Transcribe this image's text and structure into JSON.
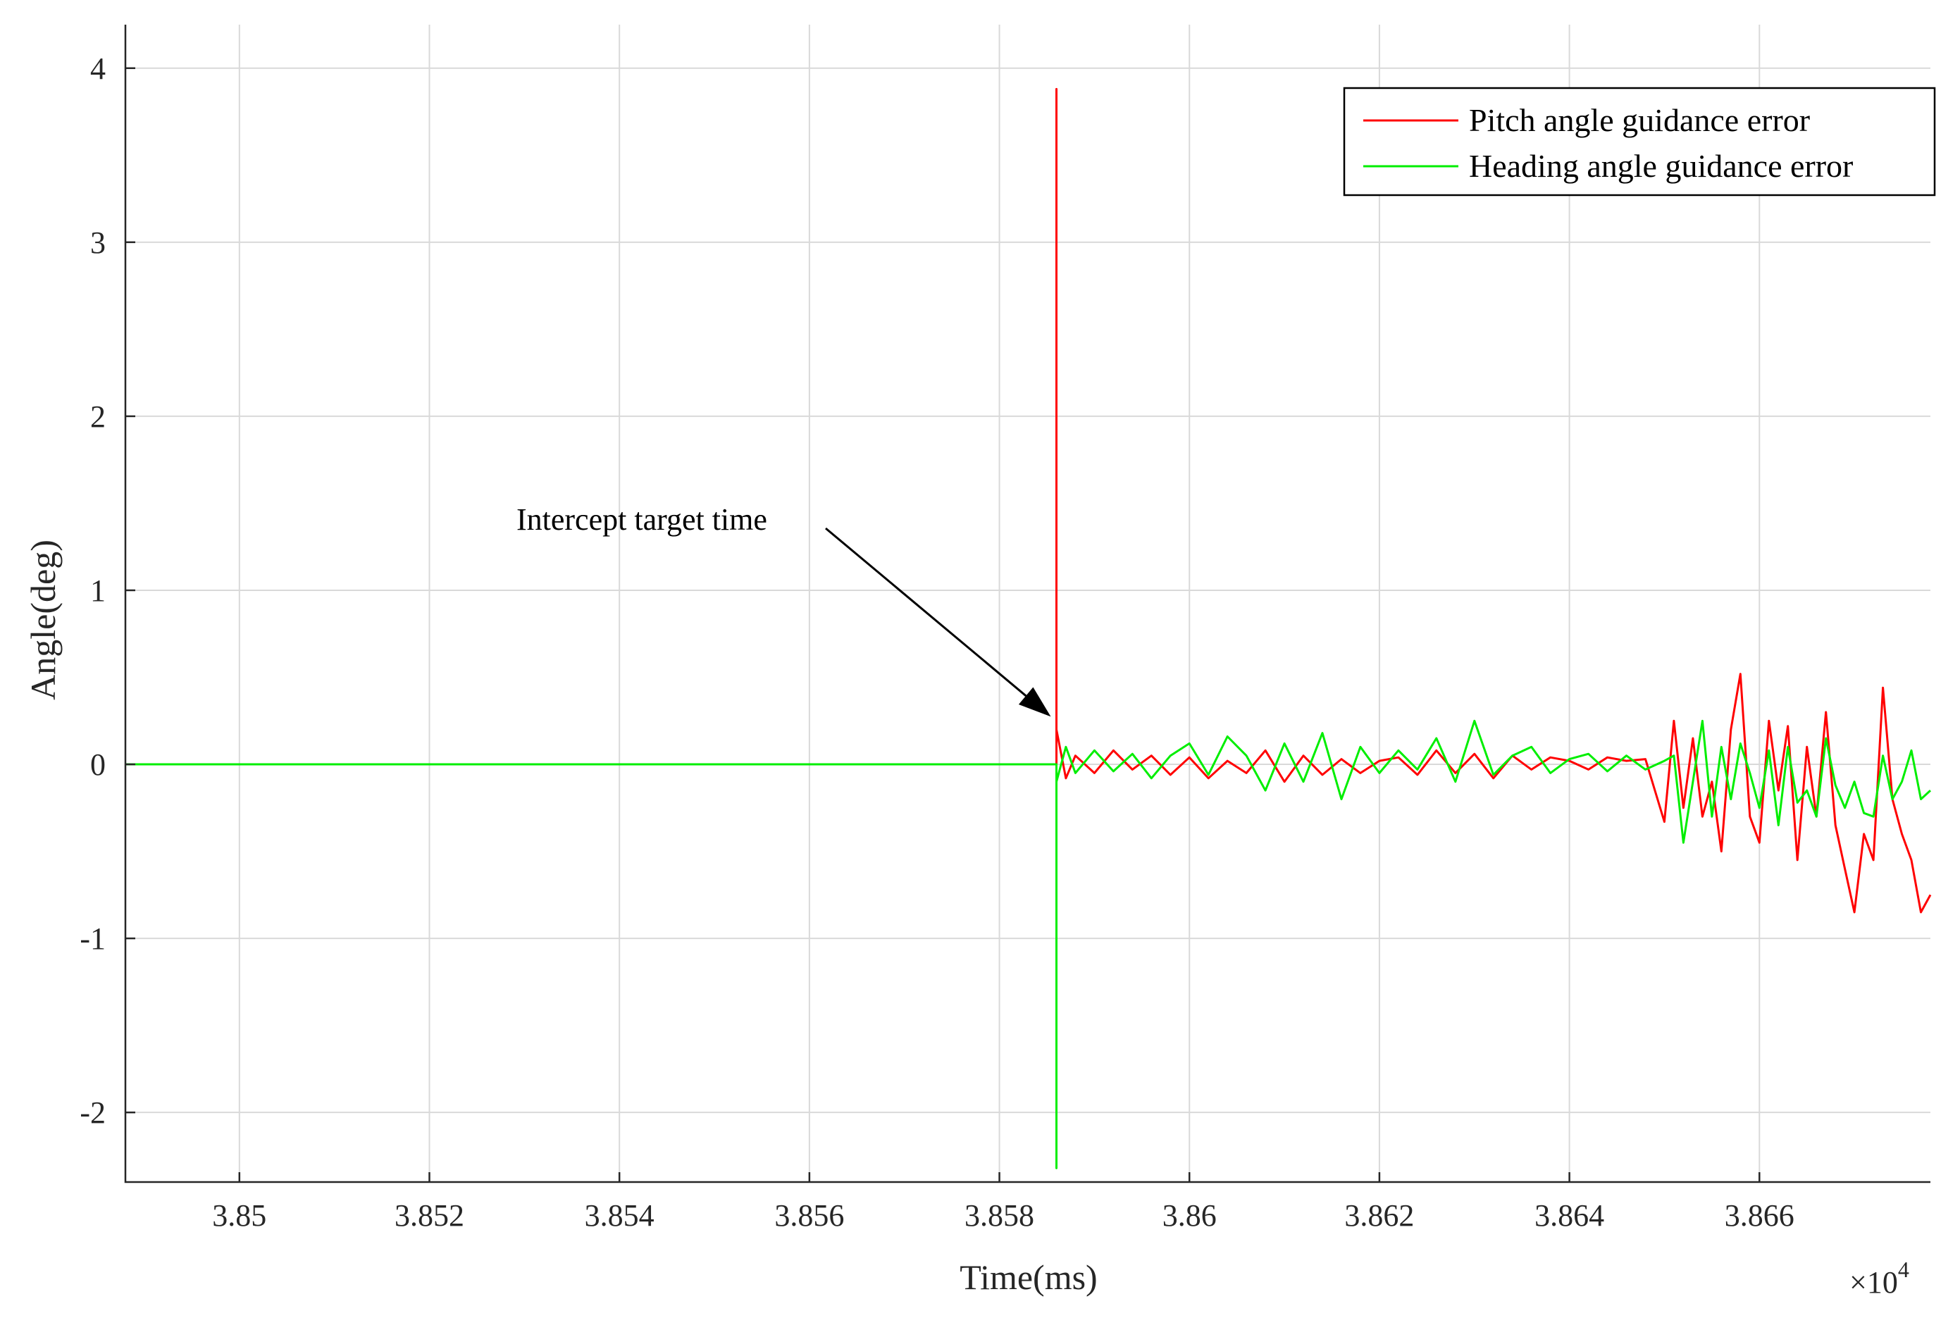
{
  "chart_data": {
    "type": "line",
    "title": "",
    "xlabel": "Time(ms)",
    "ylabel": "Angle(deg)",
    "x_exponent_label": "×10",
    "x_exponent_power": "4",
    "xlim": [
      3.8488,
      3.8678
    ],
    "ylim": [
      -2.4,
      4.25
    ],
    "xticks": [
      3.85,
      3.852,
      3.854,
      3.856,
      3.858,
      3.86,
      3.862,
      3.864,
      3.866
    ],
    "xtick_labels": [
      "3.85",
      "3.852",
      "3.854",
      "3.856",
      "3.858",
      "3.86",
      "3.862",
      "3.864",
      "3.866"
    ],
    "yticks": [
      -2,
      -1,
      0,
      1,
      2,
      3,
      4
    ],
    "ytick_labels": [
      "-2",
      "-1",
      "0",
      "1",
      "2",
      "3",
      "4"
    ],
    "grid": true,
    "legend_position": "top-right",
    "annotation": {
      "text": "Intercept target time",
      "x": 3.8586,
      "y": 0.25
    },
    "series": [
      {
        "name": "Pitch angle guidance error",
        "color": "#ff0000",
        "x": [
          3.8488,
          3.8586,
          3.8586,
          3.8586,
          3.8587,
          3.8588,
          3.859,
          3.8592,
          3.8594,
          3.8596,
          3.8598,
          3.86,
          3.8602,
          3.8604,
          3.8606,
          3.8608,
          3.861,
          3.8612,
          3.8614,
          3.8616,
          3.8618,
          3.862,
          3.8622,
          3.8624,
          3.8626,
          3.8628,
          3.863,
          3.8632,
          3.8634,
          3.8636,
          3.8638,
          3.864,
          3.8642,
          3.8644,
          3.8646,
          3.8648,
          3.865,
          3.8651,
          3.8652,
          3.8653,
          3.8654,
          3.8655,
          3.8656,
          3.8657,
          3.8658,
          3.8659,
          3.866,
          3.8661,
          3.8662,
          3.8663,
          3.8664,
          3.8665,
          3.8666,
          3.8667,
          3.8668,
          3.8669,
          3.867,
          3.8671,
          3.8672,
          3.8673,
          3.8674,
          3.8675,
          3.8676,
          3.8677,
          3.8678
        ],
        "y": [
          0,
          0,
          3.88,
          0.2,
          -0.08,
          0.05,
          -0.05,
          0.08,
          -0.03,
          0.05,
          -0.06,
          0.04,
          -0.08,
          0.02,
          -0.05,
          0.08,
          -0.1,
          0.05,
          -0.06,
          0.03,
          -0.05,
          0.02,
          0.04,
          -0.06,
          0.08,
          -0.05,
          0.06,
          -0.08,
          0.05,
          -0.03,
          0.04,
          0.02,
          -0.03,
          0.04,
          0.02,
          0.03,
          -0.33,
          0.25,
          -0.25,
          0.15,
          -0.3,
          -0.1,
          -0.5,
          0.2,
          0.52,
          -0.3,
          -0.45,
          0.25,
          -0.15,
          0.22,
          -0.55,
          0.1,
          -0.3,
          0.3,
          -0.35,
          -0.6,
          -0.85,
          -0.4,
          -0.55,
          0.44,
          -0.2,
          -0.4,
          -0.55,
          -0.85,
          -0.75
        ]
      },
      {
        "name": "Heading angle guidance error",
        "color": "#00ee00",
        "x": [
          3.8488,
          3.8586,
          3.8586,
          3.8586,
          3.8587,
          3.8588,
          3.859,
          3.8592,
          3.8594,
          3.8596,
          3.8598,
          3.86,
          3.8602,
          3.8604,
          3.8606,
          3.8608,
          3.861,
          3.8612,
          3.8614,
          3.8616,
          3.8618,
          3.862,
          3.8622,
          3.8624,
          3.8626,
          3.8628,
          3.863,
          3.8632,
          3.8634,
          3.8636,
          3.8638,
          3.864,
          3.8642,
          3.8644,
          3.8646,
          3.8648,
          3.865,
          3.8651,
          3.8652,
          3.8653,
          3.8654,
          3.8655,
          3.8656,
          3.8657,
          3.8658,
          3.8659,
          3.866,
          3.8661,
          3.8662,
          3.8663,
          3.8664,
          3.8665,
          3.8666,
          3.8667,
          3.8668,
          3.8669,
          3.867,
          3.8671,
          3.8672,
          3.8673,
          3.8674,
          3.8675,
          3.8676,
          3.8677,
          3.8678
        ],
        "y": [
          0,
          0,
          -2.32,
          -0.1,
          0.1,
          -0.05,
          0.08,
          -0.04,
          0.06,
          -0.08,
          0.05,
          0.12,
          -0.06,
          0.16,
          0.05,
          -0.15,
          0.12,
          -0.1,
          0.18,
          -0.2,
          0.1,
          -0.05,
          0.08,
          -0.03,
          0.15,
          -0.1,
          0.25,
          -0.06,
          0.05,
          0.1,
          -0.05,
          0.03,
          0.06,
          -0.04,
          0.05,
          -0.03,
          0.02,
          0.05,
          -0.45,
          -0.1,
          0.25,
          -0.3,
          0.1,
          -0.2,
          0.12,
          -0.05,
          -0.25,
          0.08,
          -0.35,
          0.1,
          -0.22,
          -0.15,
          -0.3,
          0.15,
          -0.12,
          -0.25,
          -0.1,
          -0.28,
          -0.3,
          0.05,
          -0.2,
          -0.1,
          0.08,
          -0.2,
          -0.15
        ]
      }
    ]
  }
}
